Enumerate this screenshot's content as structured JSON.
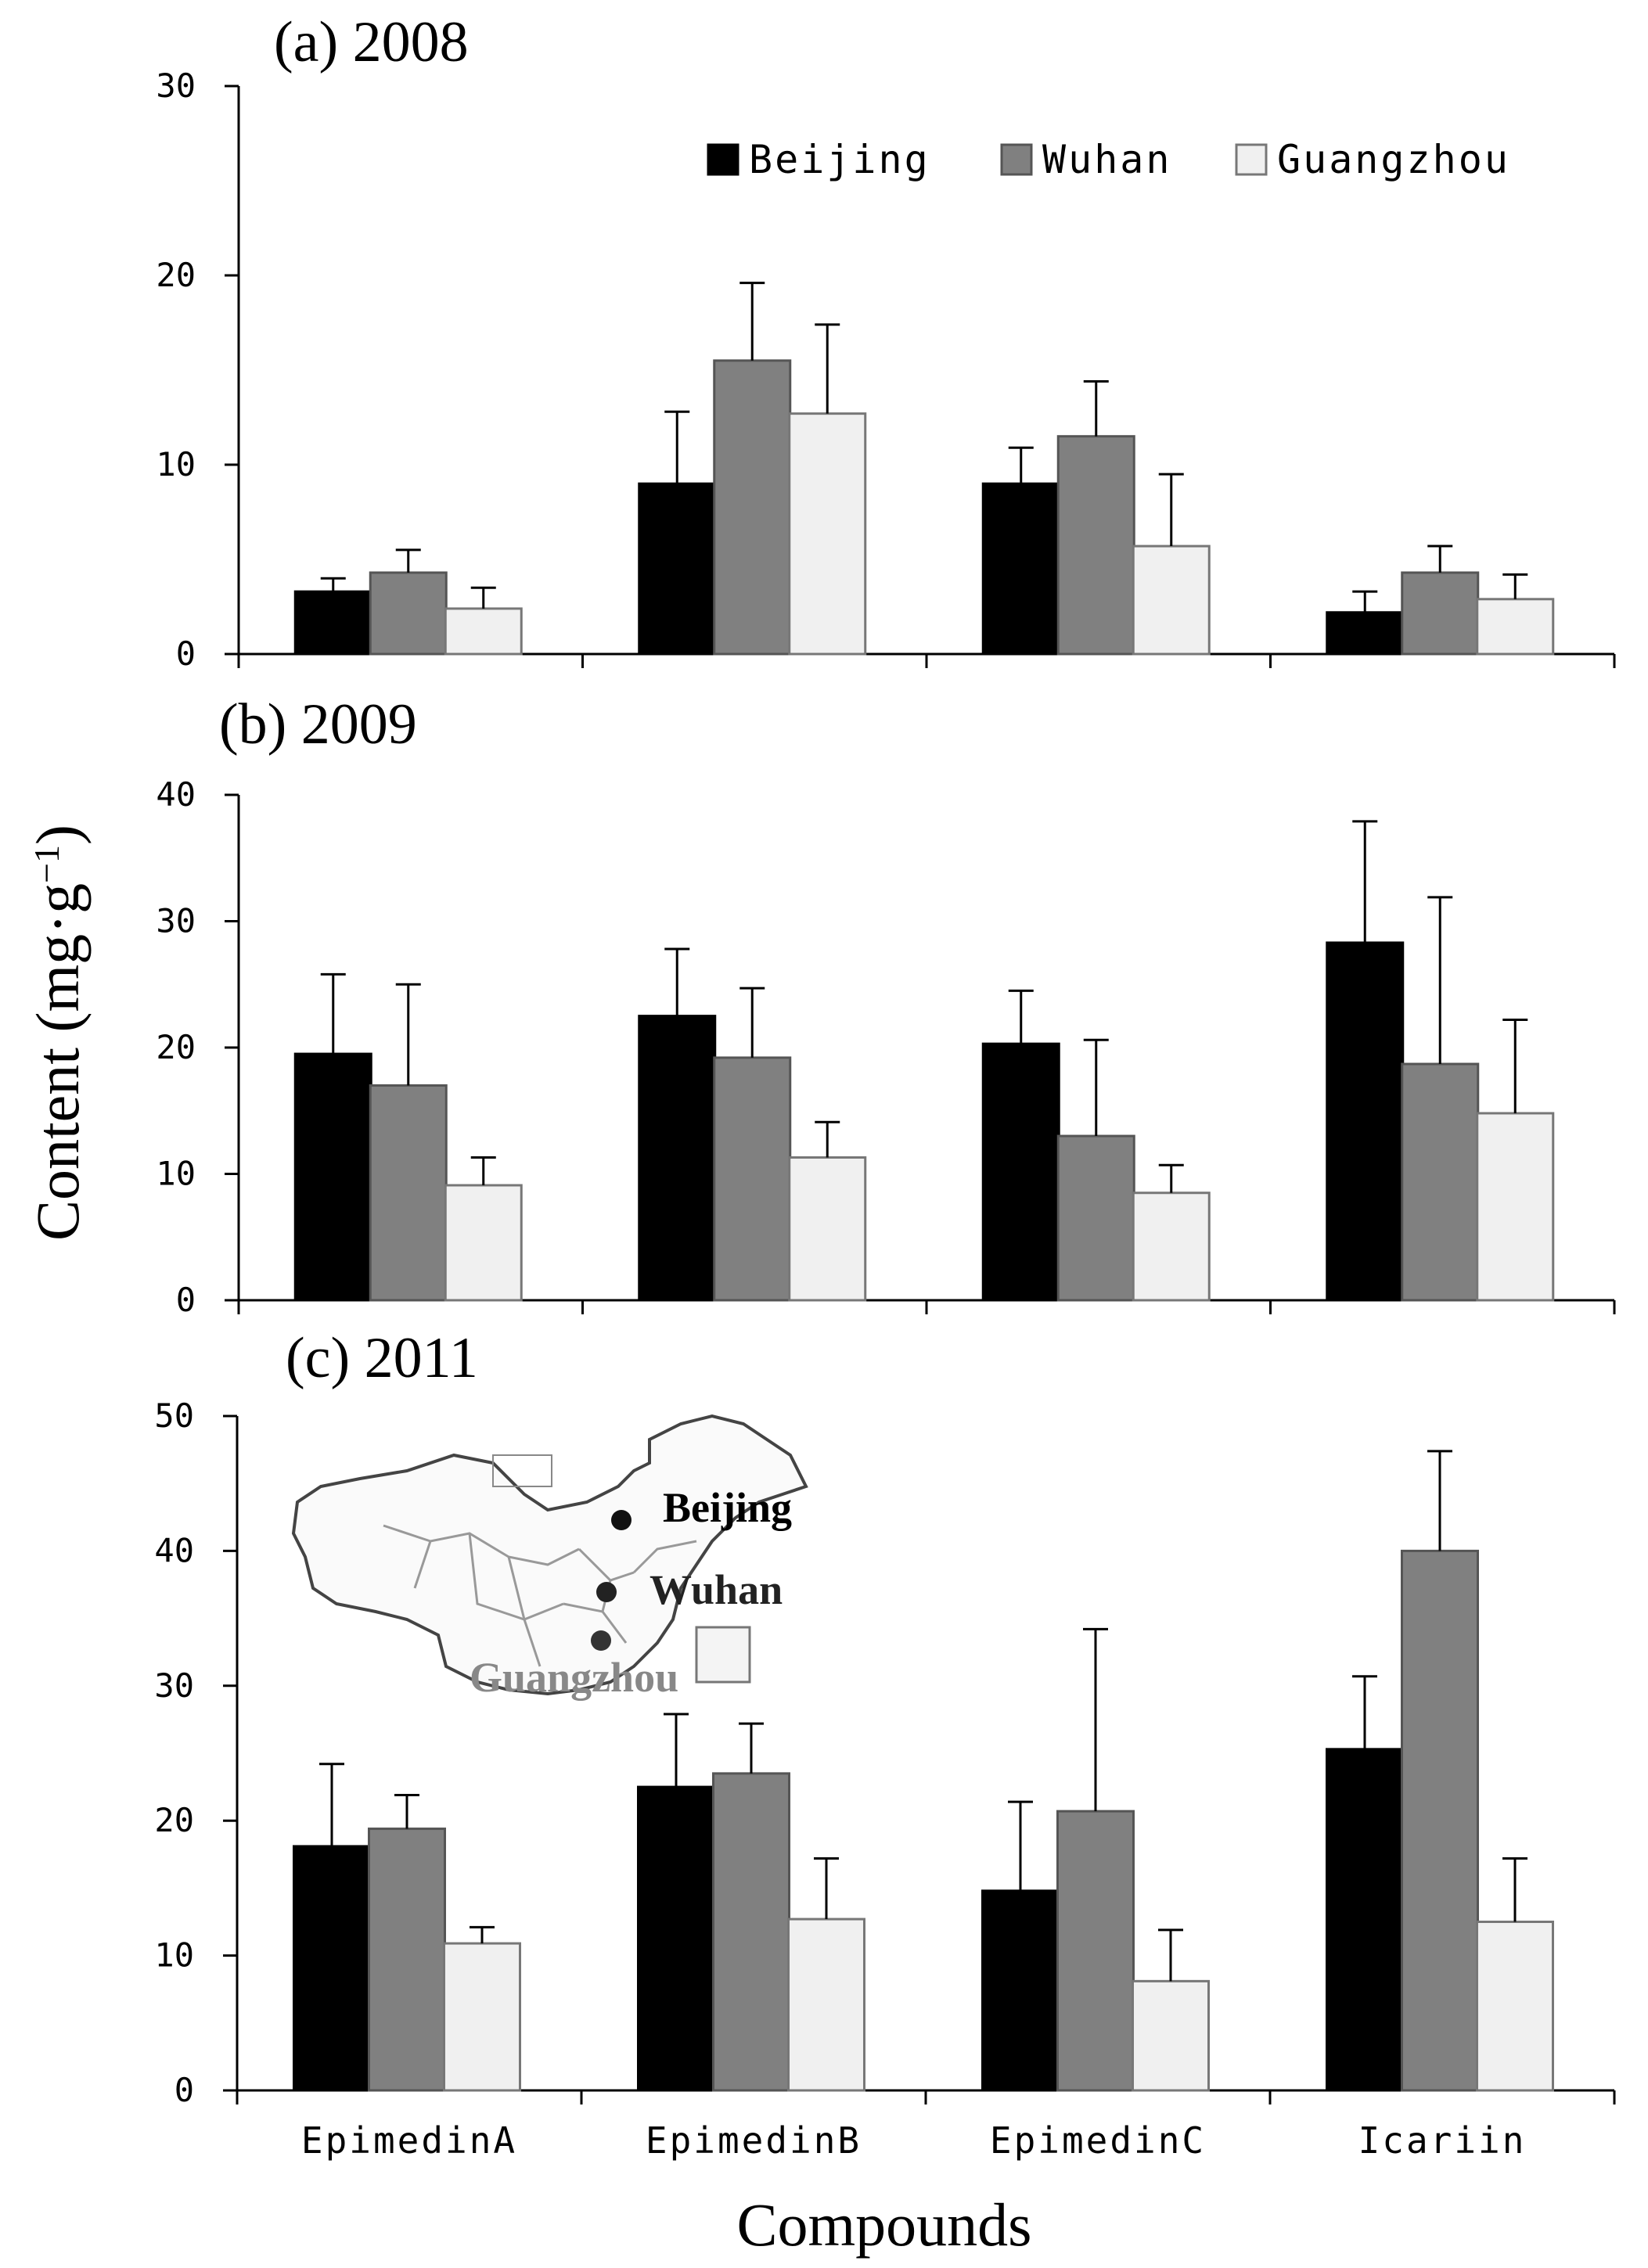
{
  "figure": {
    "ylabel_prefix": "Content (mg·g",
    "ylabel_exponent": "−1",
    "ylabel_suffix": ")",
    "xlabel": "Compounds"
  },
  "legend": {
    "items": [
      {
        "label": "Beijing",
        "color": "#000000"
      },
      {
        "label": "Wuhan",
        "color": "#808080"
      },
      {
        "label": "Guangzhou",
        "color": "#f0f0f0"
      }
    ]
  },
  "map": {
    "labels": [
      {
        "name": "Beijing",
        "color": "#000000"
      },
      {
        "name": "Wuhan",
        "color": "#222222"
      },
      {
        "name": "Guangzhou",
        "color": "#888888"
      }
    ]
  },
  "chart_data": [
    {
      "type": "bar",
      "title": "(a) 2008",
      "categories": [
        "EpimedinA",
        "EpimedinB",
        "EpimedinC",
        "Icariin"
      ],
      "ylim": [
        0,
        30
      ],
      "yticks": [
        0,
        10,
        20,
        30
      ],
      "series": [
        {
          "name": "Beijing",
          "values": [
            3.3,
            9.0,
            9.0,
            2.2
          ],
          "errors": [
            0.7,
            3.8,
            1.9,
            1.1
          ]
        },
        {
          "name": "Wuhan",
          "values": [
            4.3,
            15.5,
            11.5,
            4.3
          ],
          "errors": [
            1.2,
            4.1,
            2.9,
            1.4
          ]
        },
        {
          "name": "Guangzhou",
          "values": [
            2.4,
            12.7,
            5.7,
            2.9
          ],
          "errors": [
            1.1,
            4.7,
            3.8,
            1.3
          ]
        }
      ]
    },
    {
      "type": "bar",
      "title": "(b) 2009",
      "categories": [
        "EpimedinA",
        "EpimedinB",
        "EpimedinC",
        "Icariin"
      ],
      "ylim": [
        0,
        40
      ],
      "yticks": [
        0,
        10,
        20,
        30,
        40
      ],
      "series": [
        {
          "name": "Beijing",
          "values": [
            19.5,
            22.5,
            20.3,
            28.3
          ],
          "errors": [
            6.3,
            5.3,
            4.2,
            9.6
          ]
        },
        {
          "name": "Wuhan",
          "values": [
            17.0,
            19.2,
            13.0,
            18.7
          ],
          "errors": [
            8.0,
            5.5,
            7.6,
            13.2
          ]
        },
        {
          "name": "Guangzhou",
          "values": [
            9.1,
            11.3,
            8.5,
            14.8
          ],
          "errors": [
            2.2,
            2.8,
            2.2,
            7.4
          ]
        }
      ]
    },
    {
      "type": "bar",
      "title": "(c) 2011",
      "categories": [
        "EpimedinA",
        "EpimedinB",
        "EpimedinC",
        "Icariin"
      ],
      "ylim": [
        0,
        50
      ],
      "yticks": [
        0,
        10,
        20,
        30,
        40,
        50
      ],
      "series": [
        {
          "name": "Beijing",
          "values": [
            18.1,
            22.5,
            14.8,
            25.3
          ],
          "errors": [
            6.1,
            5.4,
            6.6,
            5.4
          ]
        },
        {
          "name": "Wuhan",
          "values": [
            19.4,
            23.5,
            20.7,
            40.0
          ],
          "errors": [
            2.5,
            3.7,
            13.5,
            7.4
          ]
        },
        {
          "name": "Guangzhou",
          "values": [
            10.9,
            12.7,
            8.1,
            12.5
          ],
          "errors": [
            1.2,
            4.5,
            3.8,
            4.7
          ]
        }
      ]
    }
  ]
}
